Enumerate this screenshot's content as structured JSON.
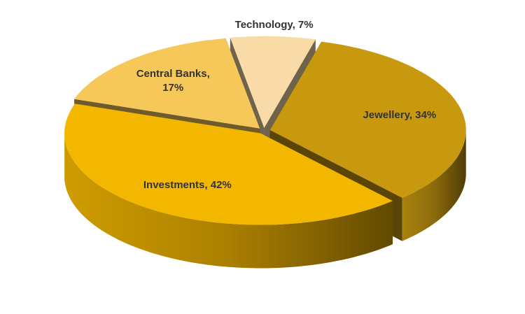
{
  "chart_data": {
    "type": "pie3d",
    "value_labels": [
      "Technology, 7%",
      "Jewellery, 34%",
      "Investments, 42%",
      "Central Banks, 17%"
    ],
    "values": [
      7,
      34,
      42,
      17
    ],
    "colors": [
      "#f8dba6",
      "#c8990f",
      "#f4b700",
      "#f6c85a"
    ]
  }
}
